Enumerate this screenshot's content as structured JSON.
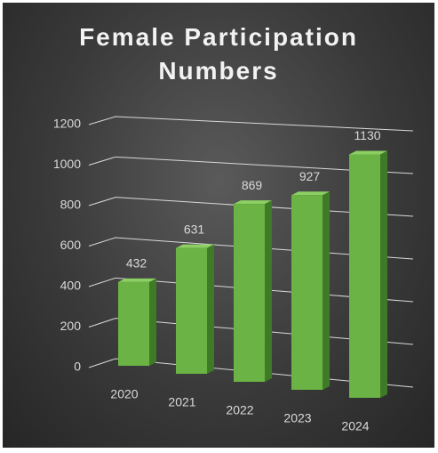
{
  "chart_data": {
    "type": "bar3d",
    "title": "Female Participation Numbers",
    "categories": [
      "2020",
      "2021",
      "2022",
      "2023",
      "2024"
    ],
    "values": [
      432,
      631,
      869,
      927,
      1130
    ],
    "color": "#6ab344",
    "ylim": [
      0,
      1200
    ],
    "yticks": [
      0,
      200,
      400,
      600,
      800,
      1000,
      1200
    ],
    "grid": true
  }
}
